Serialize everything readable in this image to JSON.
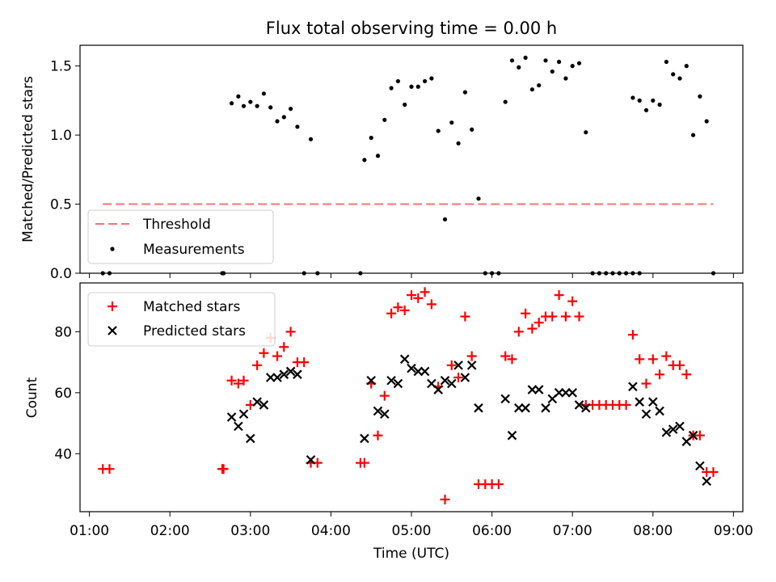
{
  "figure_title": "Flux total observing time = 0.00 h",
  "chart_data": [
    {
      "type": "scatter",
      "ylabel": "Matched/Predicted stars",
      "ylim": [
        0,
        1.65
      ],
      "xlim": [
        "00:53",
        "09:07"
      ],
      "yticks": [
        0.0,
        0.5,
        1.0,
        1.5
      ],
      "ytick_labels": [
        "0.0",
        "0.5",
        "1.0",
        "1.5"
      ],
      "xticks": [
        "01:00",
        "02:00",
        "03:00",
        "04:00",
        "05:00",
        "06:00",
        "07:00",
        "08:00",
        "09:00"
      ],
      "threshold": {
        "name": "Threshold",
        "value": 0.5,
        "x_range": [
          "01:10",
          "08:45"
        ],
        "color": "#ff7070"
      },
      "legend_position": "lower-left",
      "series": [
        {
          "name": "Measurements",
          "color": "#000000",
          "points": [
            [
              "01:10",
              0.0
            ],
            [
              "01:15",
              0.0
            ],
            [
              "02:39",
              0.0
            ],
            [
              "02:40",
              0.0
            ],
            [
              "02:46",
              1.23
            ],
            [
              "02:51",
              1.28
            ],
            [
              "02:55",
              1.21
            ],
            [
              "03:00",
              1.24
            ],
            [
              "03:05",
              1.21
            ],
            [
              "03:10",
              1.3
            ],
            [
              "03:15",
              1.2
            ],
            [
              "03:20",
              1.1
            ],
            [
              "03:25",
              1.13
            ],
            [
              "03:30",
              1.19
            ],
            [
              "03:35",
              1.06
            ],
            [
              "03:40",
              0.0
            ],
            [
              "03:45",
              0.97
            ],
            [
              "03:50",
              0.0
            ],
            [
              "04:22",
              0.0
            ],
            [
              "04:25",
              0.82
            ],
            [
              "04:30",
              0.98
            ],
            [
              "04:35",
              0.85
            ],
            [
              "04:40",
              1.11
            ],
            [
              "04:45",
              1.34
            ],
            [
              "04:50",
              1.39
            ],
            [
              "04:55",
              1.22
            ],
            [
              "05:00",
              1.35
            ],
            [
              "05:05",
              1.35
            ],
            [
              "05:10",
              1.39
            ],
            [
              "05:15",
              1.41
            ],
            [
              "05:20",
              1.03
            ],
            [
              "05:25",
              0.39
            ],
            [
              "05:30",
              1.09
            ],
            [
              "05:35",
              0.94
            ],
            [
              "05:40",
              1.31
            ],
            [
              "05:45",
              1.04
            ],
            [
              "05:50",
              0.54
            ],
            [
              "05:55",
              0.0
            ],
            [
              "06:00",
              0.0
            ],
            [
              "06:05",
              0.0
            ],
            [
              "06:10",
              1.24
            ],
            [
              "06:15",
              1.54
            ],
            [
              "06:20",
              1.49
            ],
            [
              "06:25",
              1.56
            ],
            [
              "06:30",
              1.33
            ],
            [
              "06:35",
              1.36
            ],
            [
              "06:40",
              1.54
            ],
            [
              "06:45",
              1.46
            ],
            [
              "06:50",
              1.53
            ],
            [
              "06:55",
              1.41
            ],
            [
              "07:00",
              1.5
            ],
            [
              "07:05",
              1.52
            ],
            [
              "07:10",
              1.02
            ],
            [
              "07:15",
              0.0
            ],
            [
              "07:20",
              0.0
            ],
            [
              "07:25",
              0.0
            ],
            [
              "07:30",
              0.0
            ],
            [
              "07:35",
              0.0
            ],
            [
              "07:40",
              0.0
            ],
            [
              "07:45",
              0.0
            ],
            [
              "07:50",
              0.0
            ],
            [
              "07:45",
              1.27
            ],
            [
              "07:50",
              1.25
            ],
            [
              "07:55",
              1.18
            ],
            [
              "08:00",
              1.25
            ],
            [
              "08:05",
              1.22
            ],
            [
              "08:10",
              1.53
            ],
            [
              "08:15",
              1.44
            ],
            [
              "08:20",
              1.41
            ],
            [
              "08:25",
              1.5
            ],
            [
              "08:30",
              1.0
            ],
            [
              "08:35",
              1.28
            ],
            [
              "08:40",
              1.1
            ],
            [
              "08:45",
              0.0
            ]
          ]
        }
      ]
    },
    {
      "type": "scatter",
      "ylabel": "Count",
      "xlabel": "Time (UTC)",
      "ylim": [
        21,
        96
      ],
      "xlim": [
        "00:53",
        "09:07"
      ],
      "yticks": [
        40,
        60,
        80
      ],
      "ytick_labels": [
        "40",
        "60",
        "80"
      ],
      "xticks": [
        "01:00",
        "02:00",
        "03:00",
        "04:00",
        "05:00",
        "06:00",
        "07:00",
        "08:00",
        "09:00"
      ],
      "xtick_labels": [
        "01:00",
        "02:00",
        "03:00",
        "04:00",
        "05:00",
        "06:00",
        "07:00",
        "08:00",
        "09:00"
      ],
      "legend_position": "upper-left",
      "series": [
        {
          "name": "Matched stars",
          "color": "#ff0000",
          "marker": "plus",
          "points": [
            [
              "01:10",
              35
            ],
            [
              "01:15",
              35
            ],
            [
              "02:39",
              35
            ],
            [
              "02:40",
              35
            ],
            [
              "02:46",
              64
            ],
            [
              "02:51",
              63
            ],
            [
              "02:55",
              64
            ],
            [
              "03:00",
              56
            ],
            [
              "03:05",
              69
            ],
            [
              "03:10",
              73
            ],
            [
              "03:15",
              78
            ],
            [
              "03:20",
              72
            ],
            [
              "03:25",
              75
            ],
            [
              "03:30",
              80
            ],
            [
              "03:35",
              70
            ],
            [
              "03:40",
              70
            ],
            [
              "03:45",
              37
            ],
            [
              "03:50",
              37
            ],
            [
              "04:22",
              37
            ],
            [
              "04:25",
              37
            ],
            [
              "04:30",
              63
            ],
            [
              "04:35",
              46
            ],
            [
              "04:40",
              59
            ],
            [
              "04:45",
              86
            ],
            [
              "04:50",
              88
            ],
            [
              "04:55",
              87
            ],
            [
              "05:00",
              92
            ],
            [
              "05:05",
              91
            ],
            [
              "05:10",
              93
            ],
            [
              "05:15",
              89
            ],
            [
              "05:20",
              62
            ],
            [
              "05:25",
              25
            ],
            [
              "05:30",
              69
            ],
            [
              "05:35",
              65
            ],
            [
              "05:40",
              85
            ],
            [
              "05:45",
              72
            ],
            [
              "05:50",
              30
            ],
            [
              "05:55",
              30
            ],
            [
              "06:00",
              30
            ],
            [
              "06:05",
              30
            ],
            [
              "06:10",
              72
            ],
            [
              "06:15",
              71
            ],
            [
              "06:20",
              80
            ],
            [
              "06:25",
              86
            ],
            [
              "06:30",
              81
            ],
            [
              "06:35",
              83
            ],
            [
              "06:40",
              85
            ],
            [
              "06:45",
              85
            ],
            [
              "06:50",
              92
            ],
            [
              "06:55",
              85
            ],
            [
              "07:00",
              90
            ],
            [
              "07:05",
              85
            ],
            [
              "07:10",
              56
            ],
            [
              "07:15",
              56
            ],
            [
              "07:20",
              56
            ],
            [
              "07:25",
              56
            ],
            [
              "07:30",
              56
            ],
            [
              "07:35",
              56
            ],
            [
              "07:40",
              56
            ],
            [
              "07:45",
              79
            ],
            [
              "07:50",
              71
            ],
            [
              "07:55",
              63
            ],
            [
              "08:00",
              71
            ],
            [
              "08:05",
              66
            ],
            [
              "08:10",
              72
            ],
            [
              "08:15",
              69
            ],
            [
              "08:20",
              69
            ],
            [
              "08:25",
              66
            ],
            [
              "08:30",
              46
            ],
            [
              "08:35",
              46
            ],
            [
              "08:40",
              34
            ],
            [
              "08:45",
              34
            ]
          ]
        },
        {
          "name": "Predicted stars",
          "color": "#000000",
          "marker": "x",
          "points": [
            [
              "02:46",
              52
            ],
            [
              "02:51",
              49
            ],
            [
              "02:55",
              53
            ],
            [
              "03:00",
              45
            ],
            [
              "03:05",
              57
            ],
            [
              "03:10",
              56
            ],
            [
              "03:15",
              65
            ],
            [
              "03:20",
              65
            ],
            [
              "03:25",
              66
            ],
            [
              "03:30",
              67
            ],
            [
              "03:35",
              66
            ],
            [
              "03:45",
              38
            ],
            [
              "04:25",
              45
            ],
            [
              "04:30",
              64
            ],
            [
              "04:35",
              54
            ],
            [
              "04:40",
              53
            ],
            [
              "04:45",
              64
            ],
            [
              "04:50",
              63
            ],
            [
              "04:55",
              71
            ],
            [
              "05:00",
              68
            ],
            [
              "05:05",
              67
            ],
            [
              "05:10",
              67
            ],
            [
              "05:15",
              63
            ],
            [
              "05:20",
              61
            ],
            [
              "05:25",
              64
            ],
            [
              "05:30",
              63
            ],
            [
              "05:35",
              69
            ],
            [
              "05:40",
              65
            ],
            [
              "05:45",
              69
            ],
            [
              "05:50",
              55
            ],
            [
              "06:10",
              58
            ],
            [
              "06:15",
              46
            ],
            [
              "06:20",
              55
            ],
            [
              "06:25",
              55
            ],
            [
              "06:30",
              61
            ],
            [
              "06:35",
              61
            ],
            [
              "06:40",
              55
            ],
            [
              "06:45",
              58
            ],
            [
              "06:50",
              60
            ],
            [
              "06:55",
              60
            ],
            [
              "07:00",
              60
            ],
            [
              "07:05",
              56
            ],
            [
              "07:10",
              55
            ],
            [
              "07:45",
              62
            ],
            [
              "07:50",
              57
            ],
            [
              "07:55",
              53
            ],
            [
              "08:00",
              57
            ],
            [
              "08:05",
              54
            ],
            [
              "08:10",
              47
            ],
            [
              "08:15",
              48
            ],
            [
              "08:20",
              49
            ],
            [
              "08:25",
              44
            ],
            [
              "08:30",
              46
            ],
            [
              "08:35",
              36
            ],
            [
              "08:40",
              31
            ]
          ]
        }
      ]
    }
  ]
}
